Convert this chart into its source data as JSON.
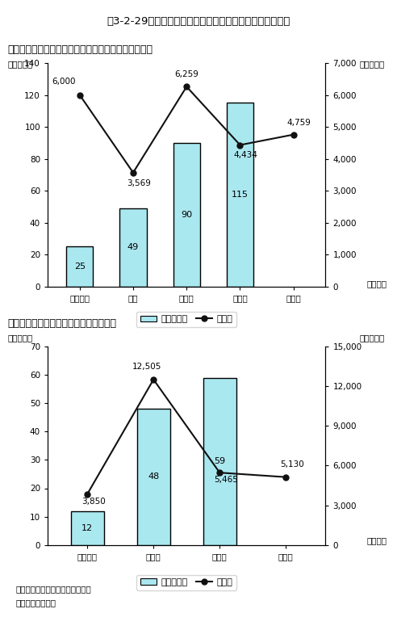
{
  "title": "第3-2-29図　私立大学学術研究高度化推進事業の進捗状況",
  "chart1": {
    "subtitle": "〇ハイテク・リサーチ・センター整備事業の拡充状況",
    "ylabel_left": "（施設数）",
    "ylabel_right": "（百万円）",
    "xlabel": "（年度）",
    "categories": [
      "平成８年",
      "９年",
      "１０年",
      "１１年",
      "１２年"
    ],
    "bar_values": [
      25,
      49,
      90,
      115,
      null
    ],
    "bar_has_data": [
      true,
      true,
      true,
      true,
      false
    ],
    "line_values": [
      6000,
      3569,
      6259,
      4434,
      4759
    ],
    "bar_labels": [
      "25",
      "49",
      "90",
      "115",
      ""
    ],
    "line_labels": [
      "6,000",
      "3,569",
      "6,259",
      "4,434",
      "4,759"
    ],
    "ylim_left": [
      0,
      140
    ],
    "ylim_right": [
      0,
      7000
    ],
    "yticks_left": [
      0,
      20,
      40,
      60,
      80,
      100,
      120,
      140
    ],
    "yticks_right": [
      0,
      1000,
      2000,
      3000,
      4000,
      5000,
      6000,
      7000
    ],
    "bar_color": "#aae8f0",
    "line_color": "#111111",
    "legend_bar": "累積施設数",
    "legend_line": "予算額"
  },
  "chart2": {
    "subtitle": "〇学術フロンティア推進事業の拡充状況",
    "ylabel_left": "（施設数）",
    "ylabel_right": "（百万円）",
    "xlabel": "（年度）",
    "categories": [
      "平成９年",
      "１０年",
      "１１年",
      "１２年"
    ],
    "bar_values": [
      12,
      48,
      59,
      null
    ],
    "bar_has_data": [
      true,
      true,
      true,
      false
    ],
    "line_values": [
      3850,
      12505,
      5465,
      5130
    ],
    "bar_labels": [
      "12",
      "48",
      "59",
      ""
    ],
    "line_labels": [
      "3,850",
      "12,505",
      "5,465",
      "5,130"
    ],
    "ylim_left": [
      0,
      70
    ],
    "ylim_right": [
      0,
      15000
    ],
    "yticks_left": [
      0,
      10,
      20,
      30,
      40,
      50,
      60,
      70
    ],
    "yticks_right": [
      0,
      3000,
      6000,
      9000,
      12000,
      15000
    ],
    "bar_color": "#aae8f0",
    "line_color": "#111111",
    "legend_bar": "累積施設数",
    "legend_line": "予算額"
  },
  "footnote1": "注）各年度とも補正予算を含む。",
  "footnote2": "資料：文部省調べ"
}
